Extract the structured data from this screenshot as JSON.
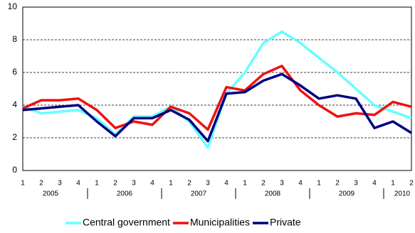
{
  "chart_data": {
    "type": "line",
    "categories": [
      "1",
      "2",
      "3",
      "4",
      "1",
      "2",
      "3",
      "4",
      "1",
      "2",
      "3",
      "4",
      "1",
      "2",
      "3",
      "4",
      "1",
      "2",
      "3",
      "4",
      "1",
      "2"
    ],
    "years": [
      "2005",
      "2006",
      "2007",
      "2008",
      "2009",
      "2010"
    ],
    "series": [
      {
        "name": "Central government",
        "color": "#66ffff",
        "values": [
          3.9,
          3.5,
          3.6,
          3.7,
          3.2,
          2.2,
          3.3,
          3.3,
          3.9,
          3.0,
          1.4,
          4.7,
          6.0,
          7.8,
          8.5,
          7.8,
          6.9,
          6.0,
          5.0,
          4.0,
          3.6,
          3.2
        ]
      },
      {
        "name": "Municipalities",
        "color": "#ee1111",
        "values": [
          3.8,
          4.3,
          4.3,
          4.4,
          3.7,
          2.6,
          3.0,
          2.8,
          3.9,
          3.5,
          2.5,
          5.1,
          4.9,
          5.9,
          6.4,
          4.9,
          4.0,
          3.3,
          3.5,
          3.4,
          4.2,
          3.9
        ]
      },
      {
        "name": "Private",
        "color": "#000080",
        "values": [
          3.7,
          3.8,
          3.9,
          4.0,
          3.0,
          2.1,
          3.2,
          3.2,
          3.7,
          3.1,
          1.8,
          4.7,
          4.8,
          5.5,
          5.9,
          5.2,
          4.4,
          4.6,
          4.4,
          2.6,
          3.0,
          2.3
        ]
      }
    ],
    "ylim": [
      0,
      10
    ],
    "yticks": [
      0,
      2,
      4,
      6,
      8,
      10
    ],
    "grid": true
  }
}
